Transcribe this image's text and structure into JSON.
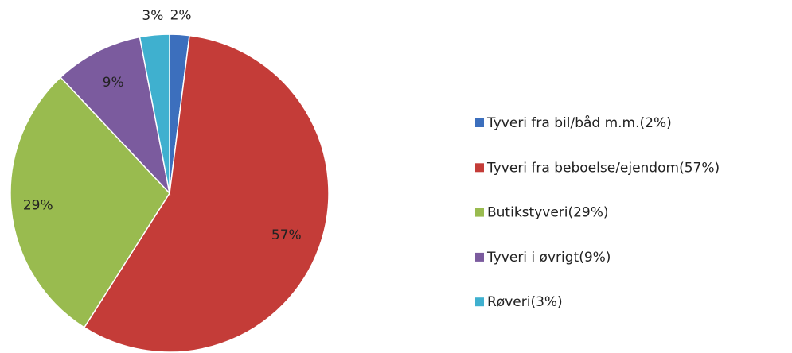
{
  "chart_data": {
    "type": "pie",
    "categories": [
      "Tyveri fra bil/båd m.m.(2%)",
      "Tyveri fra beboelse/ejendom(57%)",
      "Butikstyveri(29%)",
      "Tyveri i øvrigt(9%)",
      "Røveri(3%)"
    ],
    "values": [
      2,
      57,
      29,
      9,
      3
    ],
    "value_labels": [
      "2%",
      "57%",
      "29%",
      "9%",
      "3%"
    ],
    "colors": [
      "#3c6fbd",
      "#c43c38",
      "#99bb4f",
      "#7b5b9e",
      "#3fb0cf"
    ],
    "legend": "right"
  }
}
